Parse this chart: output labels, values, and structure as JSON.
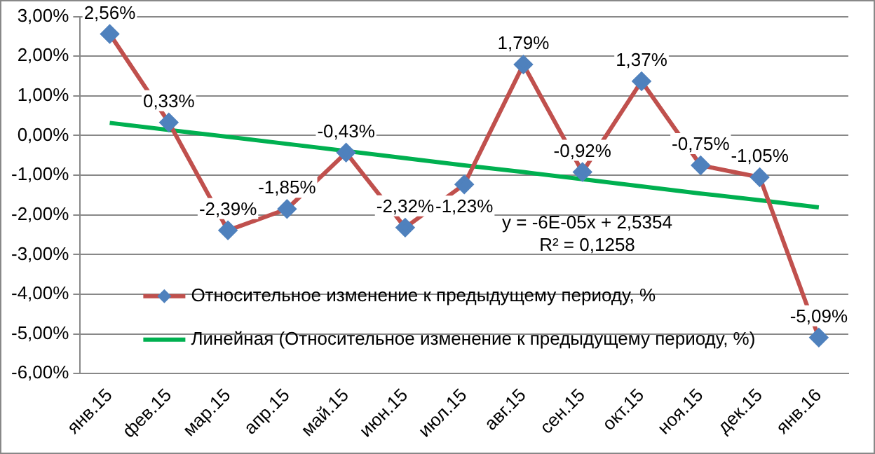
{
  "chart_data": {
    "type": "line",
    "categories": [
      "янв.15",
      "фев.15",
      "мар.15",
      "апр.15",
      "май.15",
      "июн.15",
      "июл.15",
      "авг.15",
      "сен.15",
      "окт.15",
      "ноя.15",
      "дек.15",
      "янв.16"
    ],
    "series": [
      {
        "name": "Относительное изменение к предыдущему периоду, %",
        "color": "#c0504d",
        "marker": "diamond",
        "values": [
          2.56,
          0.33,
          -2.39,
          -1.85,
          -0.43,
          -2.32,
          -1.23,
          1.79,
          -0.92,
          1.37,
          -0.75,
          -1.05,
          -5.09
        ],
        "value_labels": [
          "2,56%",
          "0,33%",
          "-2,39%",
          "-1,85%",
          "-0,43%",
          "-2,32%",
          "-1,23%",
          "1,79%",
          "-0,92%",
          "1,37%",
          "-0,75%",
          "-1,05%",
          "-5,09%"
        ]
      },
      {
        "name": "Линейная (Относительное изменение к предыдущему периоду, %)",
        "color": "#00b050",
        "marker": "none",
        "values": [
          0.32,
          0.14,
          -0.03,
          -0.21,
          -0.39,
          -0.57,
          -0.75,
          -0.92,
          -1.1,
          -1.28,
          -1.46,
          -1.63,
          -1.81
        ]
      }
    ],
    "ylim": [
      -6,
      3
    ],
    "yticks": [
      {
        "value": -6,
        "label": "-6,00%"
      },
      {
        "value": -5,
        "label": "-5,00%"
      },
      {
        "value": -4,
        "label": "-4,00%"
      },
      {
        "value": -3,
        "label": "-3,00%"
      },
      {
        "value": -2,
        "label": "-2,00%"
      },
      {
        "value": -1,
        "label": "-1,00%"
      },
      {
        "value": 0,
        "label": "0,00%"
      },
      {
        "value": 1,
        "label": "1,00%"
      },
      {
        "value": 2,
        "label": "2,00%"
      },
      {
        "value": 3,
        "label": "3,00%"
      }
    ],
    "grid": "y",
    "legend": "bottom left",
    "annotations": [
      "y = -6E-05x + 2,5354",
      "R² = 0,1258"
    ]
  }
}
